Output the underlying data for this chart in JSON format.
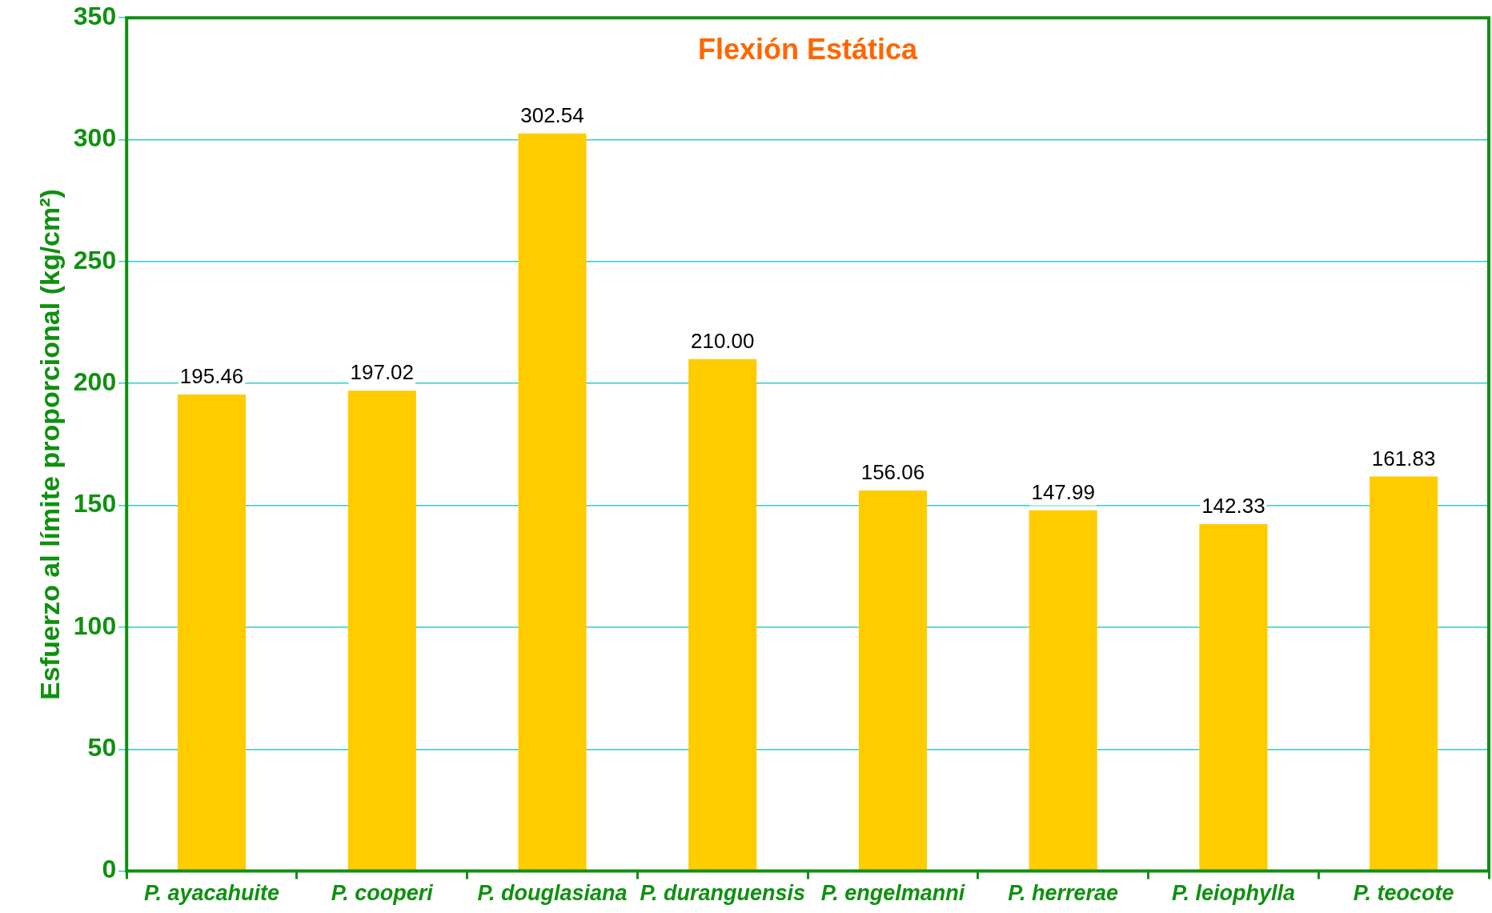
{
  "chart_data": {
    "type": "bar",
    "title": "Flexión Estática",
    "ylabel": "Esfuerzo al límite proporcional (kg/cm²)",
    "categories": [
      "P. ayacahuite",
      "P. cooperi",
      "P. douglasiana",
      "P. duranguensis",
      "P. engelmanni",
      "P. herrerae",
      "P. leiophylla",
      "P. teocote"
    ],
    "values": [
      195.46,
      197.02,
      302.54,
      210.0,
      156.06,
      147.99,
      142.33,
      161.83
    ],
    "value_labels": [
      "195.46",
      "197.02",
      "302.54",
      "210.00",
      "156.06",
      "147.99",
      "142.33",
      "161.83"
    ],
    "color": "#ffcc00",
    "ylim": [
      0,
      350
    ],
    "yticks": [
      0,
      50,
      100,
      150,
      200,
      250,
      300,
      350
    ],
    "grid": "y",
    "legend": false
  }
}
